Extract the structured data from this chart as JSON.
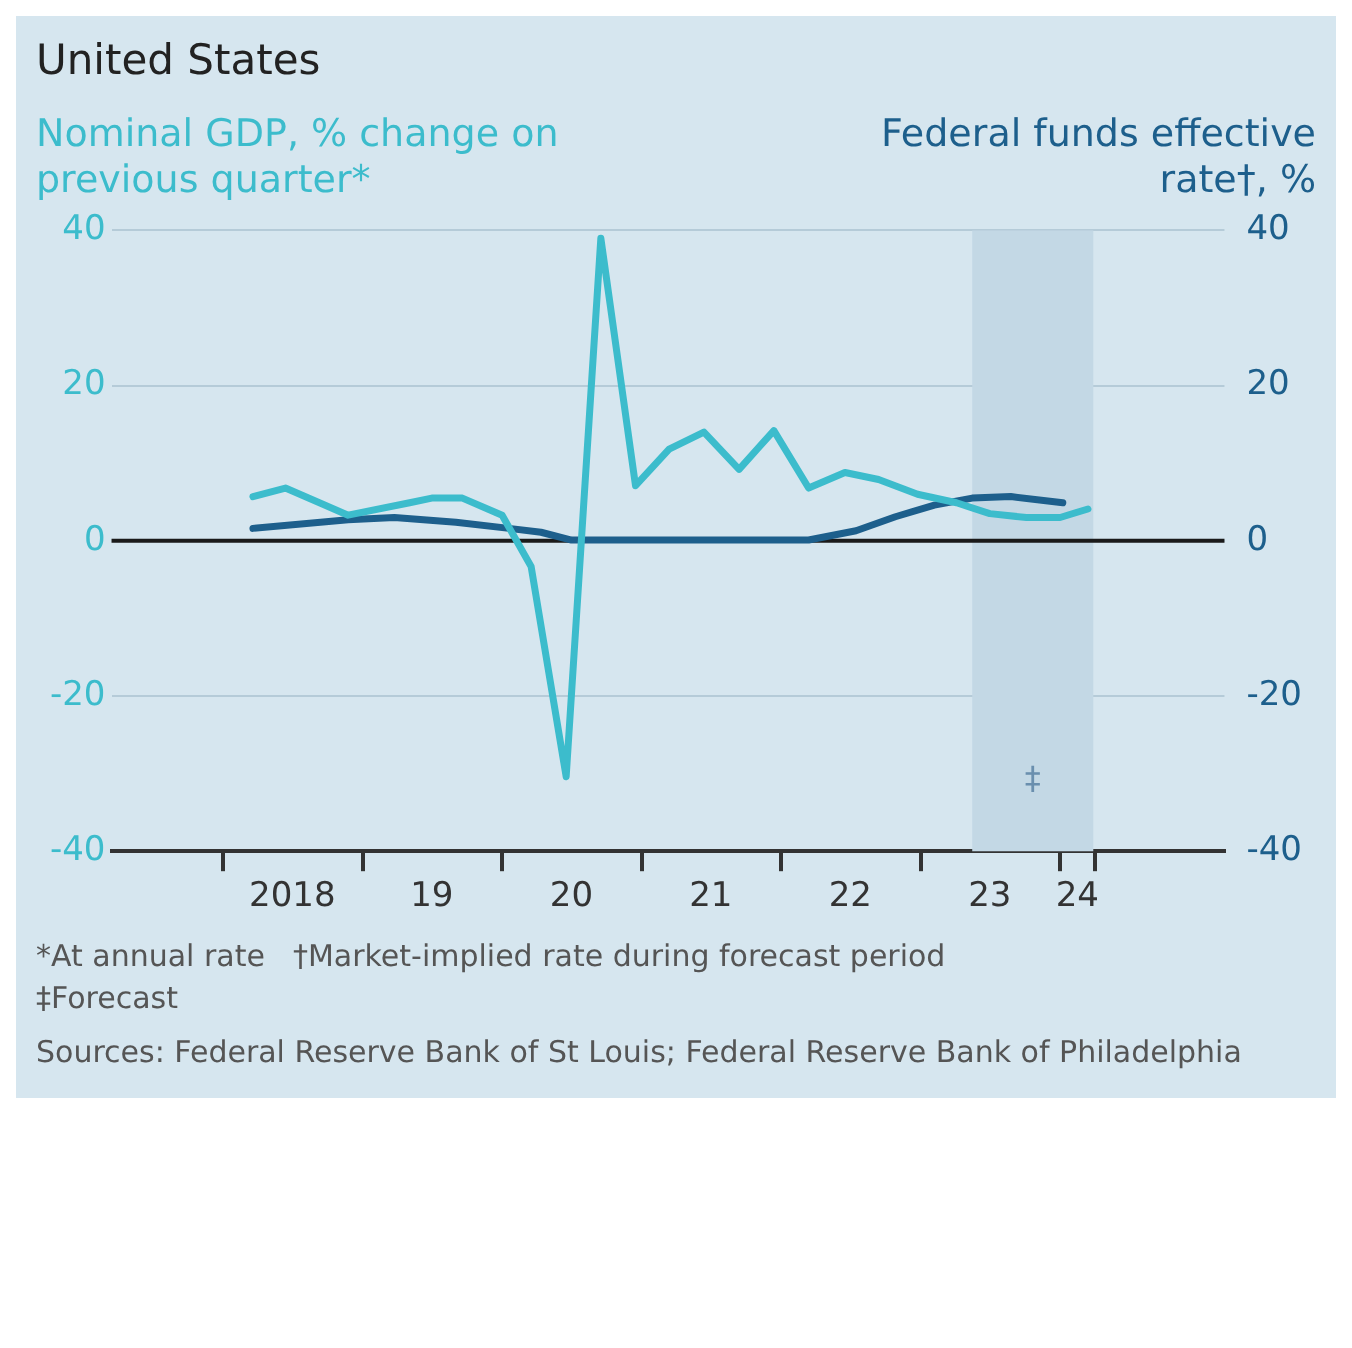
{
  "chart_data": {
    "type": "line",
    "title": "United States",
    "ylabel": "Nominal GDP, % change on previous quarter*",
    "y2label": "Federal funds effective rate†, %",
    "xlim": [
      "2017-03-15",
      "2025-03-07"
    ],
    "xticks": [
      {
        "value": "2018-01-01",
        "label": null
      },
      {
        "value": "2018-07-01",
        "label": "2018"
      },
      {
        "value": "2019-01-01",
        "label": null
      },
      {
        "value": "2019-07-01",
        "label": "19"
      },
      {
        "value": "2020-01-01",
        "label": null
      },
      {
        "value": "2020-07-01",
        "label": "20"
      },
      {
        "value": "2021-01-01",
        "label": null
      },
      {
        "value": "2021-07-01",
        "label": "21"
      },
      {
        "value": "2022-01-01",
        "label": null
      },
      {
        "value": "2022-07-01",
        "label": "22"
      },
      {
        "value": "2023-01-01",
        "label": null
      },
      {
        "value": "2023-07-01",
        "label": "23"
      },
      {
        "value": "2024-01-01",
        "label": null
      },
      {
        "value": "2024-02-15",
        "label": "24"
      },
      {
        "value": "2024-04-01",
        "label": null
      }
    ],
    "ylim": [
      -40,
      40
    ],
    "yticks": [
      -40,
      -20,
      0,
      20,
      40
    ],
    "y2lim": [
      -40,
      40
    ],
    "y2ticks": [
      -40,
      -20,
      0,
      20,
      40
    ],
    "grid": "y",
    "legend": false,
    "marker": "none",
    "line_style": "solid",
    "series": [
      {
        "color": "#3cbccc",
        "x": [
          "2018-03-20",
          "2018-06-13",
          "2018-11-24",
          "2019-05-04",
          "2019-07-01",
          "2019-09-19",
          "2020-01-01",
          "2020-03-17",
          "2020-06-17",
          "2020-09-16",
          "2020-12-16",
          "2021-03-14",
          "2021-06-13",
          "2021-09-13",
          "2021-12-13",
          "2022-03-14",
          "2022-06-17",
          "2022-09-13",
          "2022-12-24",
          "2023-04-05",
          "2023-07-01",
          "2023-10-05",
          "2024-01-01",
          "2024-03-14"
        ],
        "values": [
          5.7,
          6.8,
          3.3,
          4.9,
          5.5,
          5.5,
          3.3,
          -3.3,
          -30.4,
          39,
          7.1,
          11.8,
          14,
          9.2,
          14.2,
          6.8,
          8.8,
          7.9,
          6,
          4.9,
          3.5,
          3,
          3,
          4.1
        ]
      },
      {
        "color": "#1d5f8c",
        "axis": "y2",
        "x": [
          "2018-03-20",
          "2018-11-24",
          "2019-03-25",
          "2019-09-02",
          "2020-01-19",
          "2020-04-12",
          "2020-07-01",
          "2022-03-14",
          "2022-07-16",
          "2022-10-27",
          "2023-02-06",
          "2023-05-16",
          "2023-08-25",
          "2024-01-08"
        ],
        "values": [
          1.6,
          2.7,
          3.0,
          2.4,
          1.6,
          1.1,
          0.1,
          0.1,
          1.3,
          3.1,
          4.6,
          5.5,
          5.7,
          4.9
        ]
      }
    ],
    "bands": [
      {
        "axis": "x",
        "from": "2023-05-16",
        "to": "2024-03-28",
        "label": "‡",
        "color": "#c3d8e5"
      }
    ],
    "ref_lines": [
      {
        "axis": "y",
        "value": 0,
        "color": "#1a1a1a"
      }
    ],
    "annotations": [
      "*At annual rate",
      "†Market-implied rate during forecast period",
      "‡Forecast",
      "Sources: Federal Reserve Bank of St Louis; Federal Reserve Bank of Philadelphia"
    ]
  }
}
